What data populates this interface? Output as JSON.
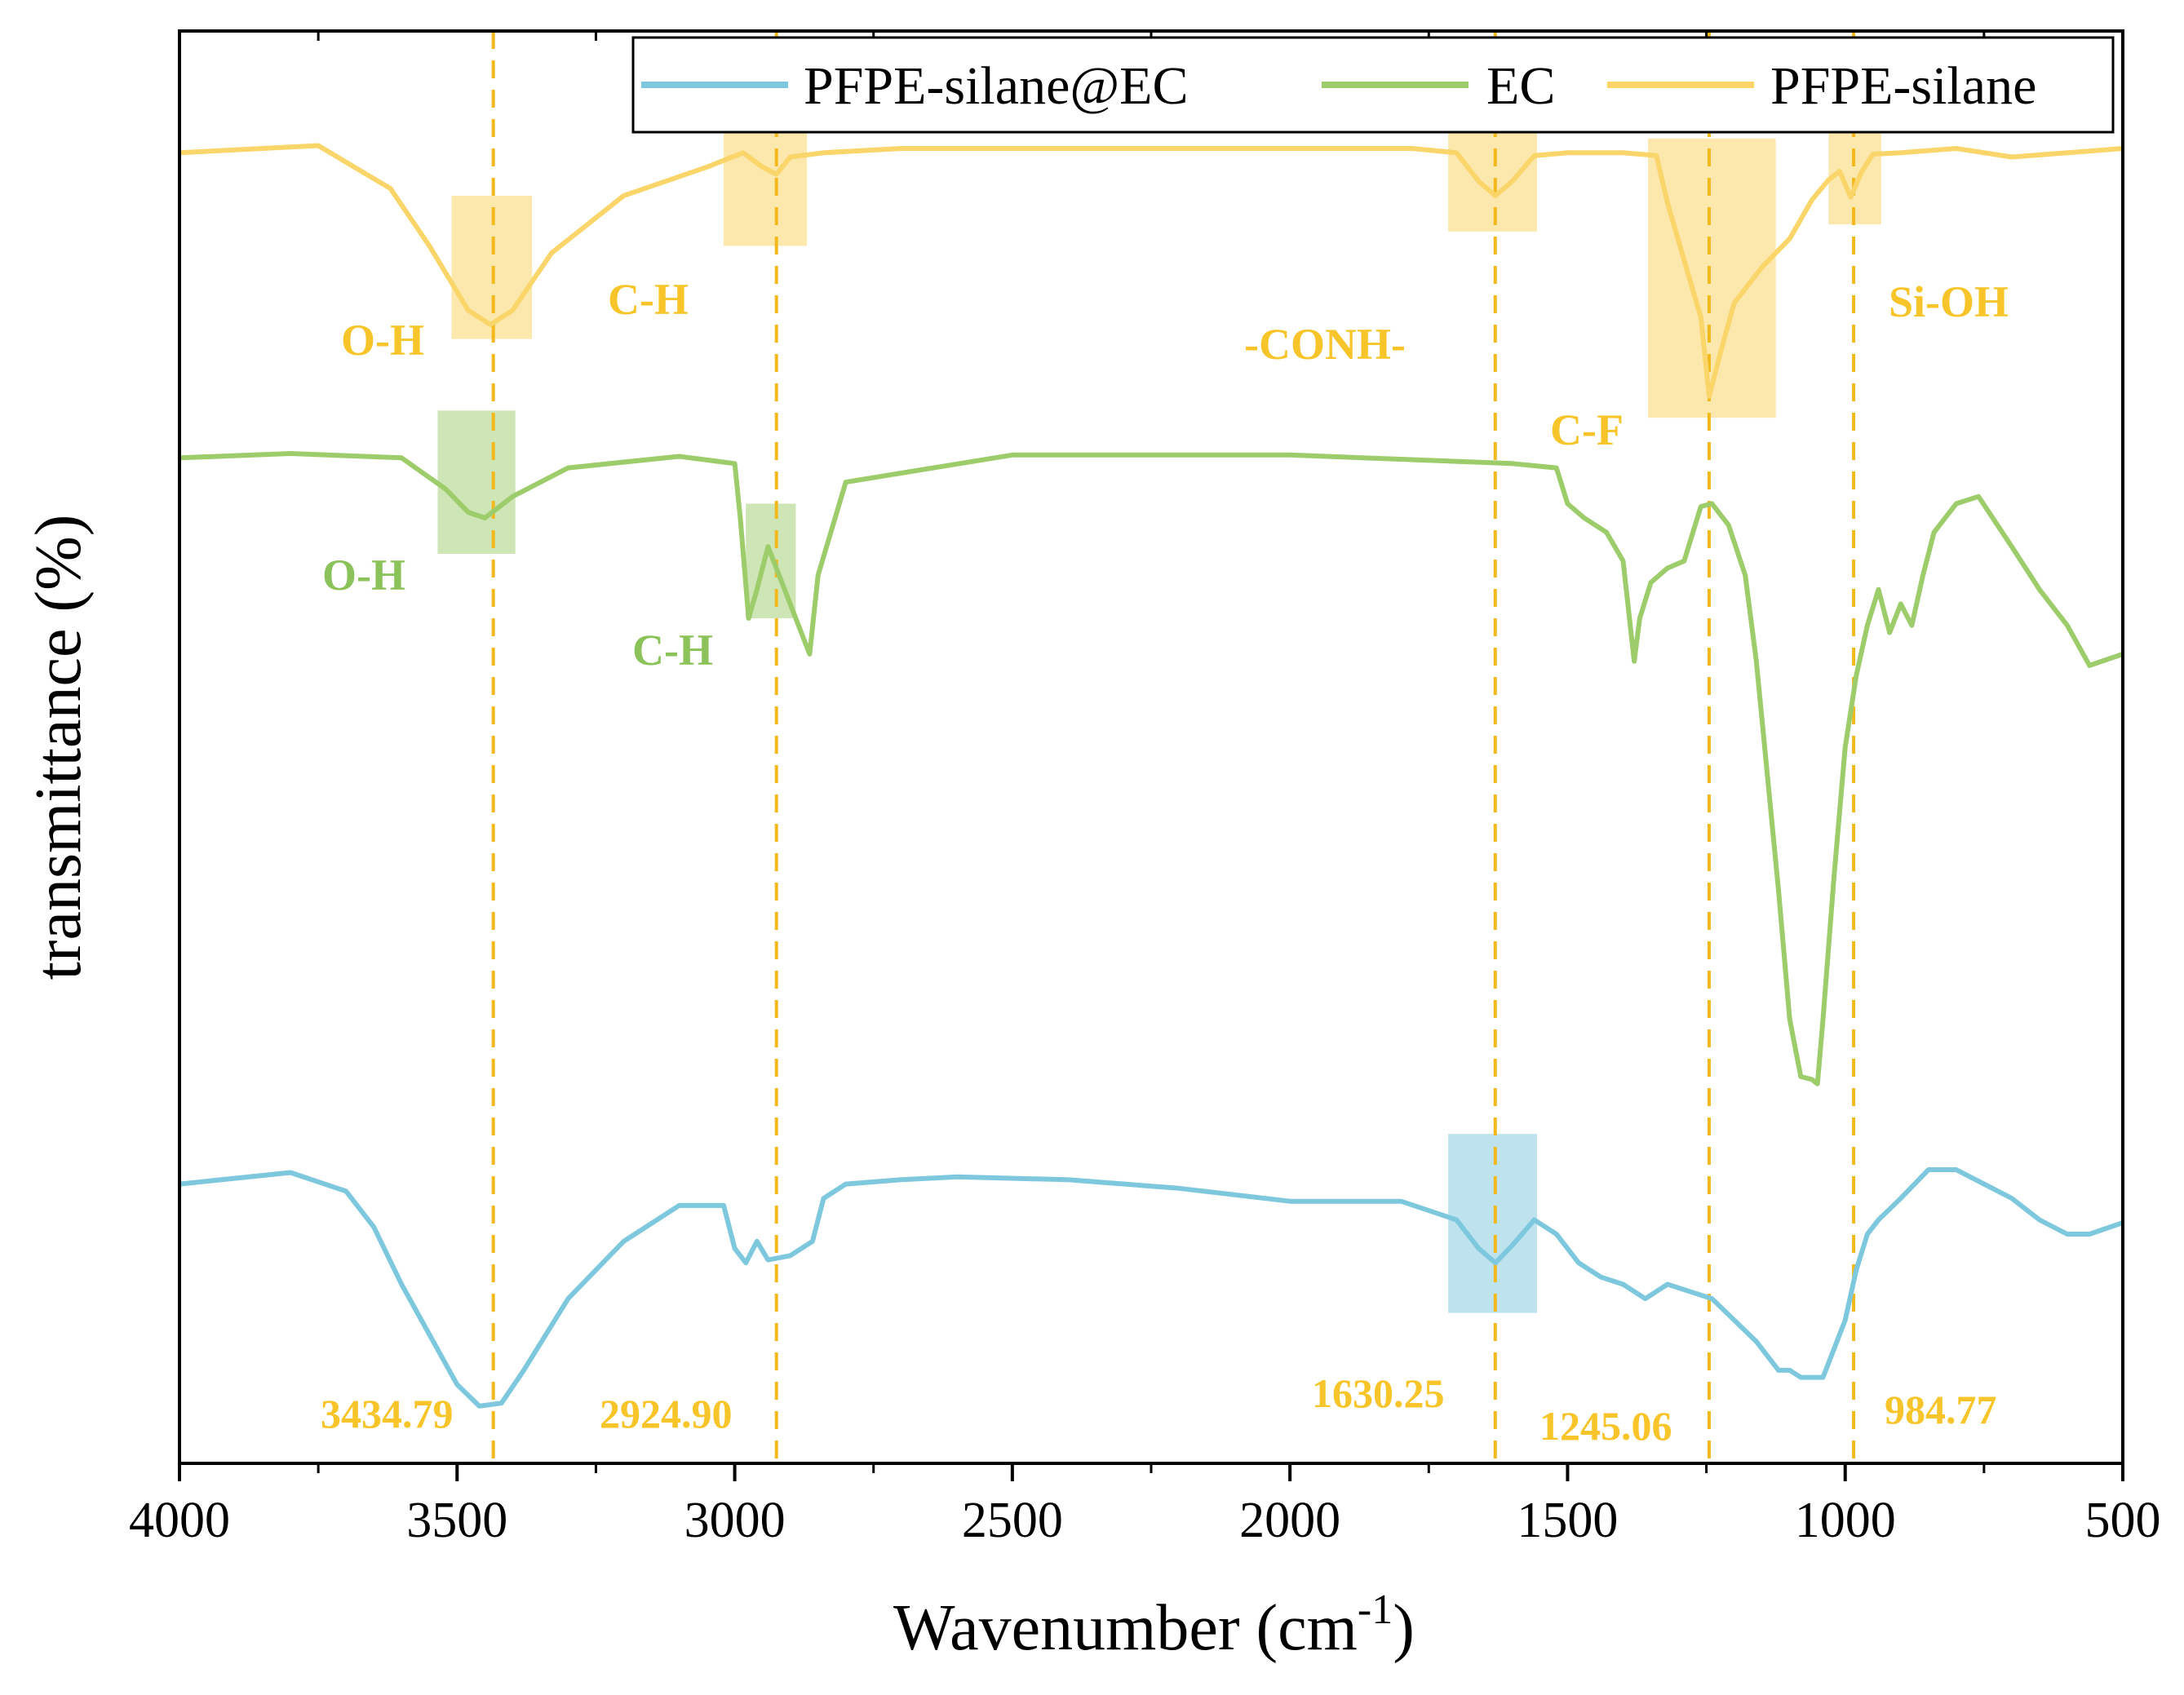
{
  "colors": {
    "PFPE-silane@EC": "#7ec8de",
    "EC": "#9dcc6b",
    "PFPE-silane": "#f9d56a",
    "guide": "#f2b81c",
    "peak_label": "#f7c52a"
  },
  "chart_data": {
    "type": "line",
    "title": "",
    "xlabel": "Wavenumber (cm",
    "xlabel_sup": "-1",
    "xlabel_close": ")",
    "ylabel": "transmittance (%)",
    "xlim": [
      4000,
      500
    ],
    "ylim": [
      0,
      100
    ],
    "x_ticks": [
      "4000",
      "3500",
      "3000",
      "2500",
      "2000",
      "1500",
      "1000",
      "500"
    ],
    "grid": false,
    "legend_position": "top-right",
    "legend": [
      "PFPE-silane@EC",
      "EC",
      "PFPE-silane"
    ],
    "series": [
      {
        "name": "PFPE-silane",
        "x": [
          4000,
          3750,
          3620,
          3550,
          3480,
          3440,
          3400,
          3330,
          3200,
          3050,
          2985,
          2950,
          2925,
          2900,
          2840,
          2700,
          2500,
          2000,
          1780,
          1700,
          1660,
          1630,
          1600,
          1560,
          1500,
          1400,
          1340,
          1320,
          1290,
          1260,
          1245,
          1225,
          1200,
          1150,
          1100,
          1060,
          1030,
          1010,
          990,
          970,
          950,
          900,
          800,
          700,
          600,
          500
        ],
        "y": [
          91.5,
          92,
          89,
          85,
          80.5,
          79.5,
          80.5,
          84.5,
          88.5,
          90.5,
          91.5,
          90.5,
          90,
          91.2,
          91.5,
          91.8,
          91.8,
          91.8,
          91.8,
          91.5,
          89.5,
          88.5,
          89.5,
          91.3,
          91.5,
          91.5,
          91.3,
          88,
          84,
          80,
          74.5,
          77.5,
          81,
          83.5,
          85.5,
          88.2,
          89.6,
          90.2,
          88.4,
          90.2,
          91.4,
          91.5,
          91.8,
          91.2,
          91.5,
          91.8
        ]
      },
      {
        "name": "EC",
        "x": [
          4000,
          3800,
          3600,
          3520,
          3480,
          3450,
          3400,
          3300,
          3100,
          3000,
          2990,
          2975,
          2960,
          2940,
          2920,
          2900,
          2880,
          2865,
          2850,
          2800,
          2500,
          2000,
          1600,
          1520,
          1500,
          1470,
          1430,
          1400,
          1380,
          1370,
          1350,
          1320,
          1290,
          1260,
          1240,
          1210,
          1180,
          1160,
          1140,
          1120,
          1100,
          1080,
          1060,
          1050,
          1040,
          1020,
          1000,
          980,
          960,
          940,
          920,
          900,
          880,
          860,
          840,
          800,
          760,
          700,
          650,
          600,
          560,
          500
        ],
        "y": [
          70.2,
          70.5,
          70.2,
          68,
          66.4,
          66,
          67.5,
          69.5,
          70.3,
          69.8,
          66,
          59,
          61,
          64,
          62,
          60,
          58,
          56.5,
          62,
          68.5,
          70.4,
          70.4,
          69.8,
          69.5,
          67,
          66,
          65,
          63,
          56,
          59,
          61.5,
          62.5,
          63,
          66.8,
          67,
          65.5,
          62,
          56,
          48,
          40,
          31,
          27,
          26.8,
          26.5,
          31,
          41,
          50,
          55,
          58.5,
          61,
          58,
          60,
          58.5,
          62,
          65,
          67,
          67.5,
          64,
          61,
          58.5,
          55.7,
          56.5
        ]
      },
      {
        "name": "PFPE-silane@EC",
        "x": [
          4000,
          3800,
          3700,
          3650,
          3600,
          3550,
          3500,
          3460,
          3420,
          3380,
          3300,
          3200,
          3100,
          3020,
          3000,
          2980,
          2960,
          2940,
          2900,
          2860,
          2840,
          2800,
          2700,
          2600,
          2400,
          2200,
          2000,
          1800,
          1700,
          1660,
          1630,
          1600,
          1560,
          1520,
          1480,
          1440,
          1400,
          1360,
          1320,
          1280,
          1240,
          1200,
          1160,
          1120,
          1100,
          1080,
          1040,
          1020,
          1000,
          980,
          960,
          940,
          900,
          850,
          800,
          750,
          700,
          650,
          600,
          560,
          500
        ],
        "y": [
          19.5,
          20.3,
          19,
          16.5,
          12.5,
          9,
          5.5,
          4,
          4.2,
          6.5,
          11.5,
          15.5,
          18,
          18,
          15,
          14,
          15.5,
          14.2,
          14.5,
          15.5,
          18.5,
          19.5,
          19.8,
          20,
          19.8,
          19.2,
          18.3,
          18.3,
          17,
          15,
          14,
          15.2,
          17,
          16,
          14,
          13,
          12.5,
          11.5,
          12.5,
          12,
          11.5,
          10,
          8.5,
          6.5,
          6.5,
          6,
          6,
          8,
          10,
          13.5,
          16,
          17,
          18.5,
          20.5,
          20.5,
          19.5,
          18.5,
          17,
          16,
          16,
          16.8
        ]
      }
    ],
    "band_labels": [
      {
        "text": "O-H",
        "series": "PFPE-silane"
      },
      {
        "text": "C-H",
        "series": "PFPE-silane"
      },
      {
        "text": "-CONH-",
        "series": "PFPE-silane"
      },
      {
        "text": "C-F",
        "series": "PFPE-silane"
      },
      {
        "text": "Si-OH",
        "series": "PFPE-silane"
      },
      {
        "text": "O-H",
        "series": "EC"
      },
      {
        "text": "C-H",
        "series": "EC"
      }
    ],
    "peaks": [
      {
        "wavenumber": 3434.79,
        "label": "3434.79"
      },
      {
        "wavenumber": 2924.9,
        "label": "2924.90"
      },
      {
        "wavenumber": 1630.25,
        "label": "1630.25"
      },
      {
        "wavenumber": 1245.06,
        "label": "1245.06"
      },
      {
        "wavenumber": 984.77,
        "label": "984.77"
      }
    ]
  }
}
